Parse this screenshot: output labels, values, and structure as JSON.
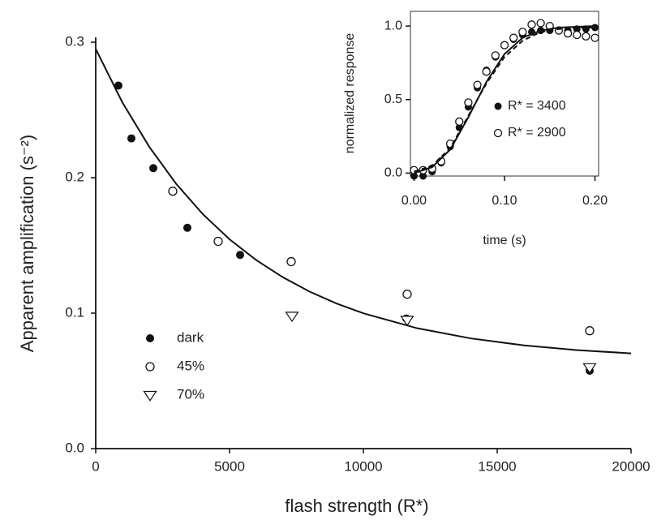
{
  "chart_data": [
    {
      "type": "scatter",
      "x_label": "flash strength (R*)",
      "y_label": "Apparent amplification (s⁻²)",
      "xlim": [
        0,
        20000
      ],
      "xticks": [
        0,
        5000,
        10000,
        15000,
        20000
      ],
      "ylim": [
        0,
        0.3
      ],
      "yticks": [
        {
          "value": 0,
          "label": "0.0"
        },
        0.1,
        0.2,
        0.3
      ],
      "series": [
        {
          "name": "dark",
          "marker": "filled",
          "color": "#111111",
          "x": [
            848,
            1333,
            2152,
            3424,
            5394,
            11606,
            18454
          ],
          "values": [
            0.268,
            0.229,
            0.207,
            0.163,
            0.143,
            0.096,
            0.0575
          ]
        },
        {
          "name": "45%",
          "marker": "open",
          "color": "#111111",
          "x": [
            2879,
            4576,
            7303,
            11636,
            18454
          ],
          "values": [
            0.19,
            0.153,
            0.138,
            0.114,
            0.087
          ]
        },
        {
          "name": "70%",
          "marker": "triangle",
          "color": "#111111",
          "x": [
            7333,
            11636,
            18454
          ],
          "values": [
            0.098,
            0.095,
            0.06
          ]
        },
        {
          "marker": "line",
          "color": "#111111",
          "x": [
            0,
            1000,
            2000,
            3000,
            4000,
            5000,
            6000,
            7000,
            8000,
            9000,
            10000,
            12000,
            14000,
            16000,
            18000,
            20000
          ],
          "values": [
            0.295,
            0.2554,
            0.2228,
            0.1956,
            0.1731,
            0.1545,
            0.1391,
            0.1264,
            0.1158,
            0.1071,
            0.0999,
            0.0889,
            0.0814,
            0.0762,
            0.0727,
            0.0703
          ]
        }
      ]
    },
    {
      "type": "scatter",
      "x_label": "time (s)",
      "y_label": "normalized response",
      "xlim": [
        -0.004,
        0.204
      ],
      "xticks": [
        {
          "value": 0,
          "label": "0.00"
        },
        {
          "value": 0.1,
          "label": "0.10"
        },
        {
          "value": 0.2,
          "label": "0.20"
        }
      ],
      "ylim": [
        -0.02,
        1.1
      ],
      "yticks": [
        {
          "value": 0,
          "label": "0.0"
        },
        0.5,
        {
          "value": 1,
          "label": "1.0"
        }
      ],
      "series": [
        {
          "name": "R* = 3400",
          "marker": "filled",
          "color": "#111111",
          "x": [
            0,
            0.01,
            0.02,
            0.03,
            0.04,
            0.05,
            0.06,
            0.07,
            0.08,
            0.09,
            0.1,
            0.11,
            0.12,
            0.13,
            0.14,
            0.15,
            0.16,
            0.17,
            0.18,
            0.19,
            0.2
          ],
          "values": [
            -0.02,
            -0.02,
            0.01,
            0.07,
            0.18,
            0.31,
            0.45,
            0.58,
            0.7,
            0.79,
            0.87,
            0.91,
            0.94,
            0.96,
            0.97,
            0.97,
            0.97,
            0.97,
            0.98,
            0.98,
            0.99
          ]
        },
        {
          "name": "R* = 2900",
          "marker": "open",
          "color": "#111111",
          "x": [
            0,
            0.01,
            0.02,
            0.03,
            0.04,
            0.05,
            0.06,
            0.07,
            0.08,
            0.09,
            0.1,
            0.11,
            0.12,
            0.13,
            0.14,
            0.15,
            0.16,
            0.17,
            0.18,
            0.19,
            0.2
          ],
          "values": [
            0.02,
            0.02,
            0.03,
            0.08,
            0.2,
            0.35,
            0.48,
            0.6,
            0.69,
            0.8,
            0.87,
            0.92,
            0.96,
            1.01,
            1.02,
            1.0,
            0.97,
            0.95,
            0.94,
            0.93,
            0.92
          ]
        },
        {
          "marker": "line",
          "color": "#111111",
          "x": [
            0,
            0.02,
            0.04,
            0.06,
            0.08,
            0.1,
            0.12,
            0.14,
            0.16,
            0.18,
            0.2
          ],
          "values": [
            0,
            0.04,
            0.16,
            0.38,
            0.62,
            0.81,
            0.92,
            0.97,
            0.99,
            0.995,
            1.0
          ]
        },
        {
          "marker": "dashed",
          "color": "#111111",
          "x": [
            0,
            0.02,
            0.04,
            0.06,
            0.08,
            0.1,
            0.12,
            0.14,
            0.16,
            0.18,
            0.2
          ],
          "values": [
            0.01,
            0.05,
            0.17,
            0.39,
            0.61,
            0.79,
            0.9,
            0.96,
            0.98,
            0.99,
            0.99
          ]
        }
      ]
    }
  ]
}
